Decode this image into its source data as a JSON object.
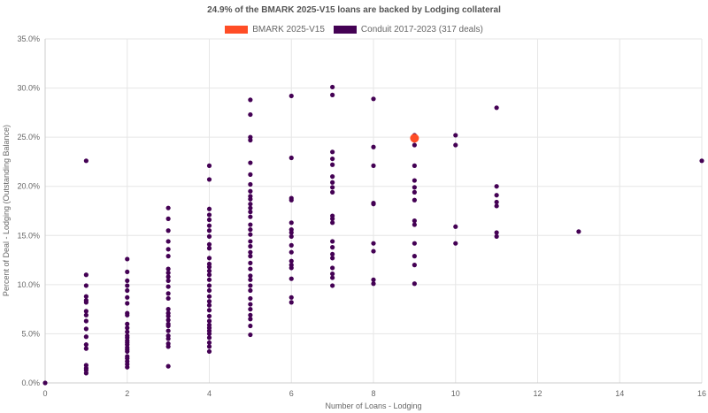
{
  "chart_data": {
    "type": "scatter",
    "title": "24.9% of the BMARK 2025-V15 loans are backed by Lodging collateral",
    "xlabel": "Number of Loans - Lodging",
    "ylabel": "Percent of Deal - Lodging (Outstanding Balance)",
    "xlim": [
      0,
      16
    ],
    "ylim": [
      0,
      35
    ],
    "x_ticks": [
      "0",
      "2",
      "4",
      "6",
      "8",
      "10",
      "12",
      "14",
      "16"
    ],
    "y_ticks": [
      "0.0%",
      "5.0%",
      "10.0%",
      "15.0%",
      "20.0%",
      "25.0%",
      "30.0%",
      "35.0%"
    ],
    "grid": true,
    "legend_position": "top-center",
    "series": [
      {
        "name": "BMARK 2025-V15",
        "color": "#ff4d26",
        "points": [
          [
            9,
            24.9
          ]
        ]
      },
      {
        "name": "Conduit 2017-2023 (317 deals)",
        "color": "#440154",
        "points": [
          [
            0,
            0
          ],
          [
            1,
            22.6
          ],
          [
            1,
            11.0
          ],
          [
            1,
            9.9
          ],
          [
            1,
            8.8
          ],
          [
            1,
            8.4
          ],
          [
            1,
            8.2
          ],
          [
            1,
            7.3
          ],
          [
            1,
            6.9
          ],
          [
            1,
            6.3
          ],
          [
            1,
            5.5
          ],
          [
            1,
            4.7
          ],
          [
            1,
            3.9
          ],
          [
            1,
            3.5
          ],
          [
            1,
            1.8
          ],
          [
            1,
            1.5
          ],
          [
            1,
            1.3
          ],
          [
            1,
            1.0
          ],
          [
            2,
            12.6
          ],
          [
            2,
            11.3
          ],
          [
            2,
            10.4
          ],
          [
            2,
            9.9
          ],
          [
            2,
            9.4
          ],
          [
            2,
            8.7
          ],
          [
            2,
            8.1
          ],
          [
            2,
            7.1
          ],
          [
            2,
            6.9
          ],
          [
            2,
            6.0
          ],
          [
            2,
            5.6
          ],
          [
            2,
            5.2
          ],
          [
            2,
            4.8
          ],
          [
            2,
            4.6
          ],
          [
            2,
            4.3
          ],
          [
            2,
            4.1
          ],
          [
            2,
            3.9
          ],
          [
            2,
            3.6
          ],
          [
            2,
            3.4
          ],
          [
            2,
            3.2
          ],
          [
            2,
            2.7
          ],
          [
            2,
            2.5
          ],
          [
            2,
            2.2
          ],
          [
            2,
            1.9
          ],
          [
            2,
            1.6
          ],
          [
            3,
            17.8
          ],
          [
            3,
            16.7
          ],
          [
            3,
            15.5
          ],
          [
            3,
            14.4
          ],
          [
            3,
            13.6
          ],
          [
            3,
            12.9
          ],
          [
            3,
            11.6
          ],
          [
            3,
            11.2
          ],
          [
            3,
            10.8
          ],
          [
            3,
            10.4
          ],
          [
            3,
            9.8
          ],
          [
            3,
            9.1
          ],
          [
            3,
            8.6
          ],
          [
            3,
            7.5
          ],
          [
            3,
            7.1
          ],
          [
            3,
            6.8
          ],
          [
            3,
            6.4
          ],
          [
            3,
            6.0
          ],
          [
            3,
            5.8
          ],
          [
            3,
            5.3
          ],
          [
            3,
            4.8
          ],
          [
            3,
            4.5
          ],
          [
            3,
            4.0
          ],
          [
            3,
            3.7
          ],
          [
            3,
            1.7
          ],
          [
            4,
            22.1
          ],
          [
            4,
            20.7
          ],
          [
            4,
            17.7
          ],
          [
            4,
            17.1
          ],
          [
            4,
            16.6
          ],
          [
            4,
            16.0
          ],
          [
            4,
            15.5
          ],
          [
            4,
            14.9
          ],
          [
            4,
            14.1
          ],
          [
            4,
            13.7
          ],
          [
            4,
            12.7
          ],
          [
            4,
            12.1
          ],
          [
            4,
            11.8
          ],
          [
            4,
            11.4
          ],
          [
            4,
            11.0
          ],
          [
            4,
            10.5
          ],
          [
            4,
            9.9
          ],
          [
            4,
            9.4
          ],
          [
            4,
            8.8
          ],
          [
            4,
            8.3
          ],
          [
            4,
            7.9
          ],
          [
            4,
            7.4
          ],
          [
            4,
            6.8
          ],
          [
            4,
            6.3
          ],
          [
            4,
            5.9
          ],
          [
            4,
            5.6
          ],
          [
            4,
            5.3
          ],
          [
            4,
            5.0
          ],
          [
            4,
            4.6
          ],
          [
            4,
            4.1
          ],
          [
            4,
            3.7
          ],
          [
            4,
            3.2
          ],
          [
            5,
            28.8
          ],
          [
            5,
            27.3
          ],
          [
            5,
            25.0
          ],
          [
            5,
            24.7
          ],
          [
            5,
            22.4
          ],
          [
            5,
            21.2
          ],
          [
            5,
            20.2
          ],
          [
            5,
            19.5
          ],
          [
            5,
            19.0
          ],
          [
            5,
            18.7
          ],
          [
            5,
            18.2
          ],
          [
            5,
            17.8
          ],
          [
            5,
            17.4
          ],
          [
            5,
            16.9
          ],
          [
            5,
            16.1
          ],
          [
            5,
            15.6
          ],
          [
            5,
            15.1
          ],
          [
            5,
            14.4
          ],
          [
            5,
            13.9
          ],
          [
            5,
            13.3
          ],
          [
            5,
            12.9
          ],
          [
            5,
            12.2
          ],
          [
            5,
            11.6
          ],
          [
            5,
            10.9
          ],
          [
            5,
            10.5
          ],
          [
            5,
            9.9
          ],
          [
            5,
            9.4
          ],
          [
            5,
            8.6
          ],
          [
            5,
            8.0
          ],
          [
            5,
            7.5
          ],
          [
            5,
            6.9
          ],
          [
            5,
            6.5
          ],
          [
            5,
            5.8
          ],
          [
            5,
            4.9
          ],
          [
            6,
            29.2
          ],
          [
            6,
            22.9
          ],
          [
            6,
            18.8
          ],
          [
            6,
            18.6
          ],
          [
            6,
            16.3
          ],
          [
            6,
            15.6
          ],
          [
            6,
            15.3
          ],
          [
            6,
            14.9
          ],
          [
            6,
            14.0
          ],
          [
            6,
            13.3
          ],
          [
            6,
            12.4
          ],
          [
            6,
            12.0
          ],
          [
            6,
            11.7
          ],
          [
            6,
            10.6
          ],
          [
            6,
            8.7
          ],
          [
            6,
            8.2
          ],
          [
            7,
            30.1
          ],
          [
            7,
            29.3
          ],
          [
            7,
            23.5
          ],
          [
            7,
            22.8
          ],
          [
            7,
            22.2
          ],
          [
            7,
            21.0
          ],
          [
            7,
            20.4
          ],
          [
            7,
            19.9
          ],
          [
            7,
            19.4
          ],
          [
            7,
            17.0
          ],
          [
            7,
            16.7
          ],
          [
            7,
            16.3
          ],
          [
            7,
            14.4
          ],
          [
            7,
            13.8
          ],
          [
            7,
            13.1
          ],
          [
            7,
            12.7
          ],
          [
            7,
            11.7
          ],
          [
            7,
            11.1
          ],
          [
            7,
            10.7
          ],
          [
            7,
            9.9
          ],
          [
            8,
            28.9
          ],
          [
            8,
            24.0
          ],
          [
            8,
            22.1
          ],
          [
            8,
            18.3
          ],
          [
            8,
            18.2
          ],
          [
            8,
            14.2
          ],
          [
            8,
            13.4
          ],
          [
            8,
            10.5
          ],
          [
            8,
            10.1
          ],
          [
            9,
            25.2
          ],
          [
            9,
            24.2
          ],
          [
            9,
            22.1
          ],
          [
            9,
            20.6
          ],
          [
            9,
            19.9
          ],
          [
            9,
            19.4
          ],
          [
            9,
            18.6
          ],
          [
            9,
            16.5
          ],
          [
            9,
            16.1
          ],
          [
            9,
            14.2
          ],
          [
            9,
            12.9
          ],
          [
            9,
            12.0
          ],
          [
            9,
            10.1
          ],
          [
            10,
            25.2
          ],
          [
            10,
            24.2
          ],
          [
            10,
            15.9
          ],
          [
            10,
            14.2
          ],
          [
            11,
            28.0
          ],
          [
            11,
            20.0
          ],
          [
            11,
            19.1
          ],
          [
            11,
            18.4
          ],
          [
            11,
            18.0
          ],
          [
            11,
            15.3
          ],
          [
            11,
            14.9
          ],
          [
            13,
            15.4
          ],
          [
            16,
            22.6
          ]
        ]
      }
    ]
  }
}
